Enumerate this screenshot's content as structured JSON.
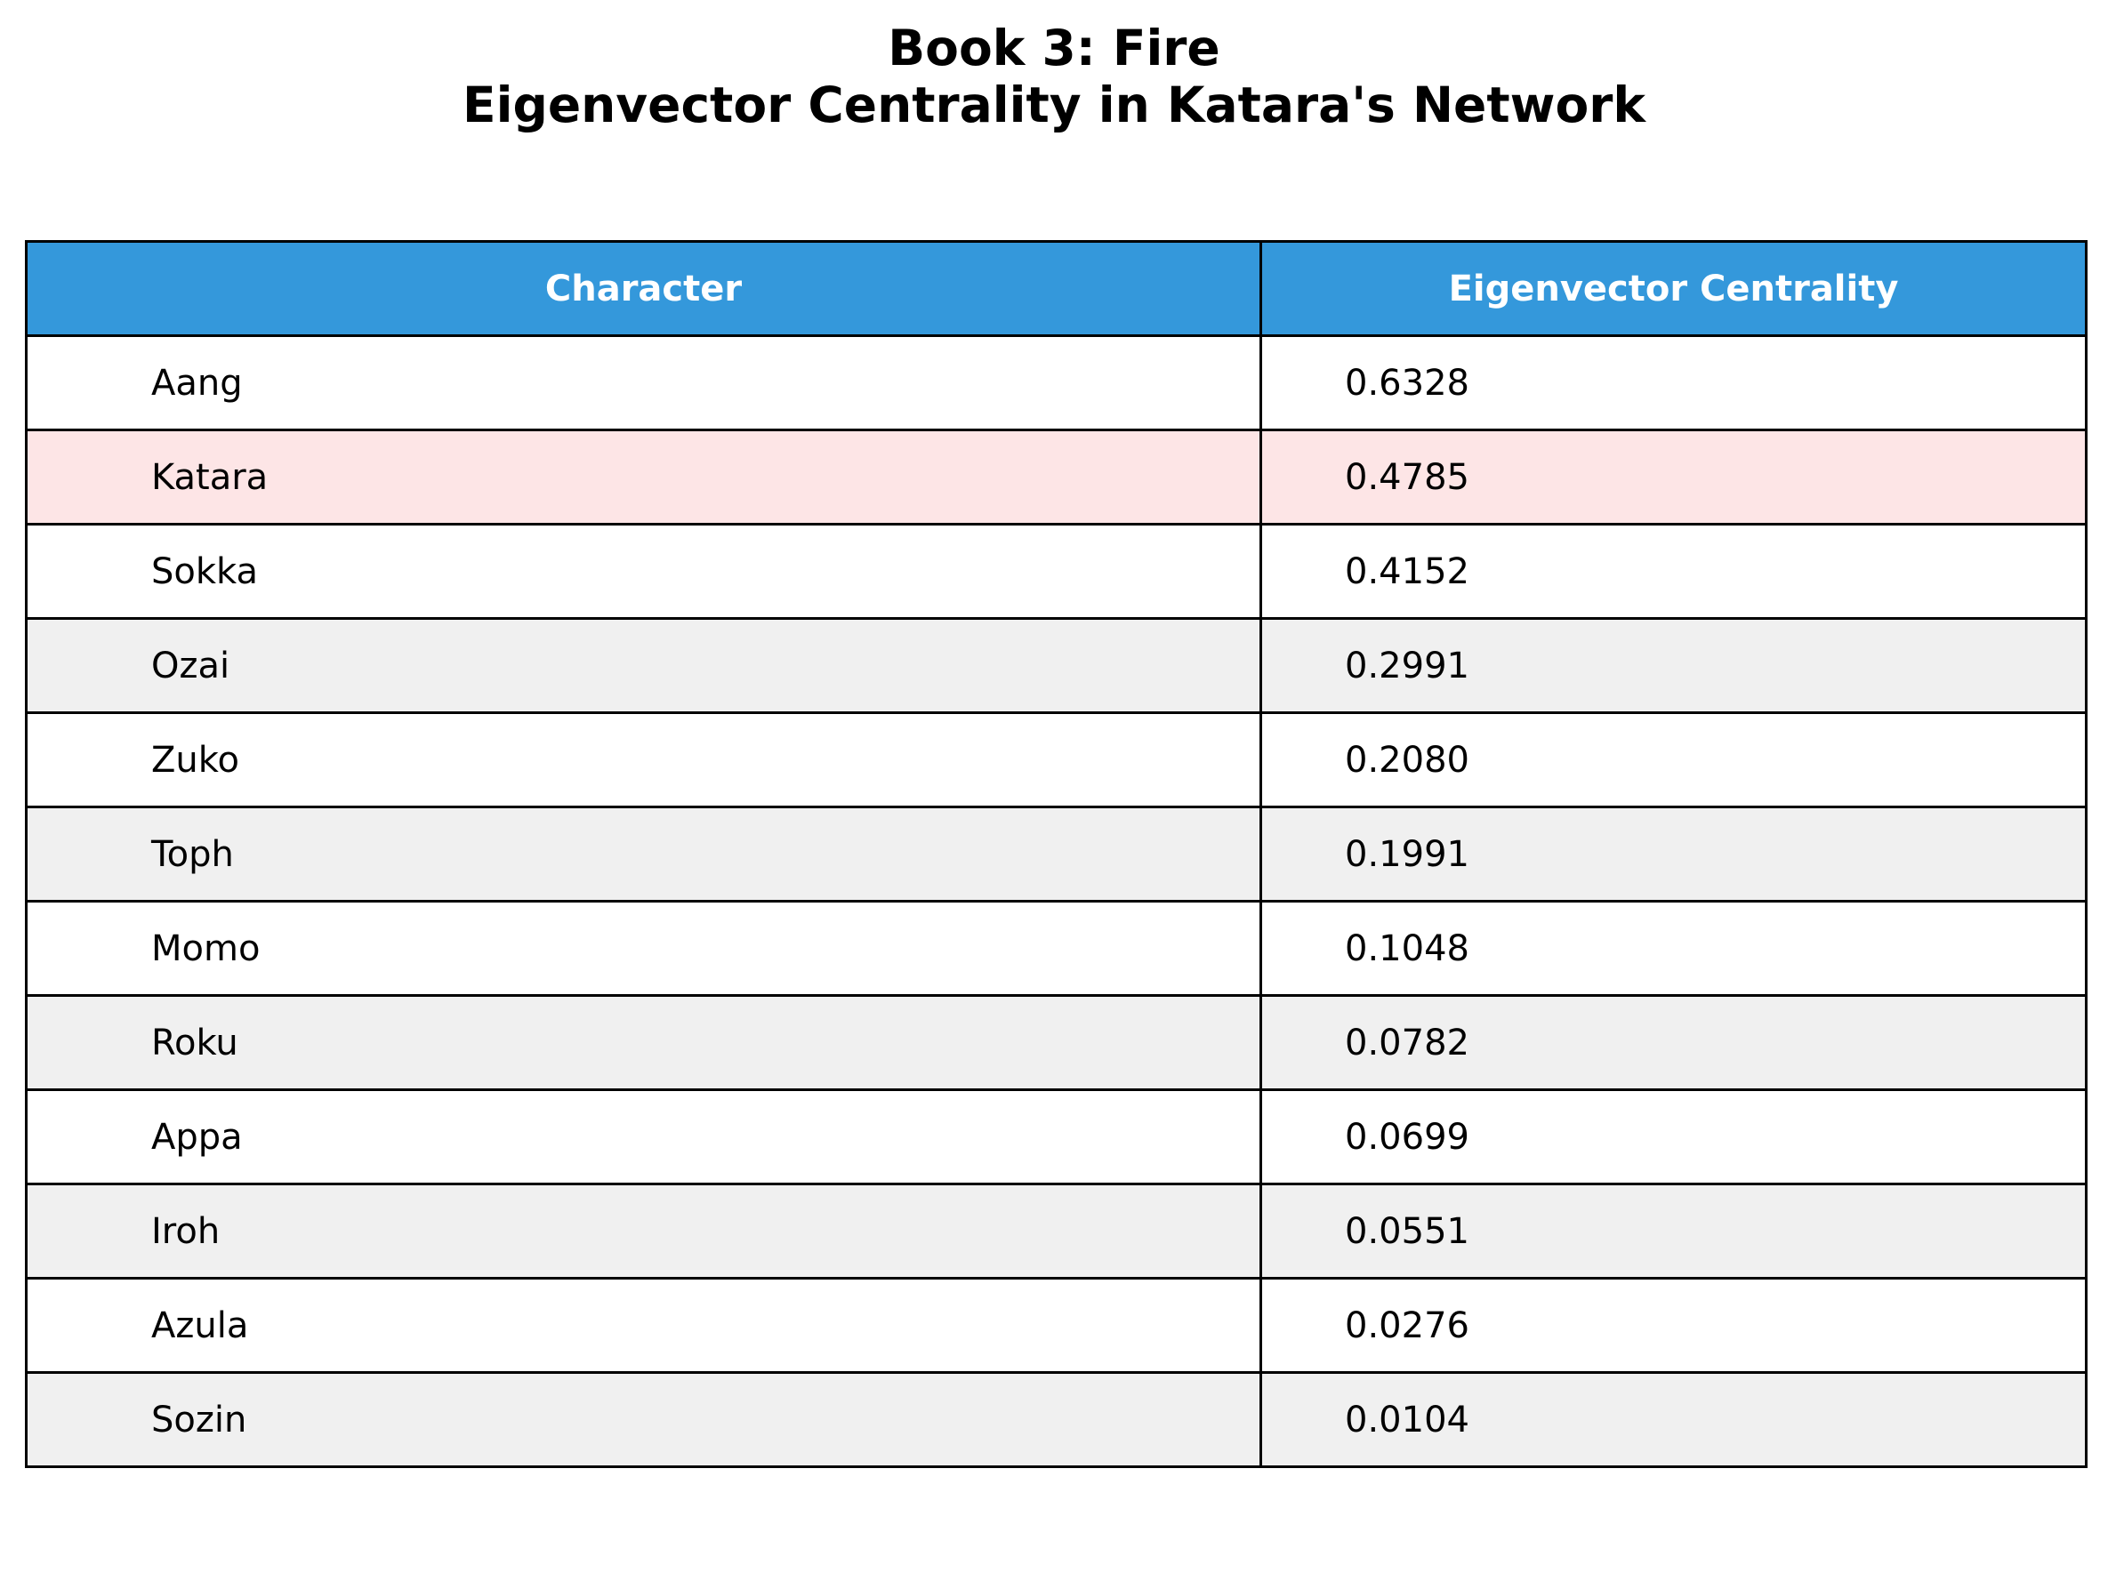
{
  "chart_data": {
    "type": "table",
    "title_lines": [
      "Book 3: Fire",
      "Eigenvector Centrality in Katara's Network"
    ],
    "columns": [
      "Character",
      "Eigenvector Centrality"
    ],
    "rows": [
      {
        "character": "Aang",
        "value": "0.6328"
      },
      {
        "character": "Katara",
        "value": "0.4785"
      },
      {
        "character": "Sokka",
        "value": "0.4152"
      },
      {
        "character": "Ozai",
        "value": "0.2991"
      },
      {
        "character": "Zuko",
        "value": "0.2080"
      },
      {
        "character": "Toph",
        "value": "0.1991"
      },
      {
        "character": "Momo",
        "value": "0.1048"
      },
      {
        "character": "Roku",
        "value": "0.0782"
      },
      {
        "character": "Appa",
        "value": "0.0699"
      },
      {
        "character": "Iroh",
        "value": "0.0551"
      },
      {
        "character": "Azula",
        "value": "0.0276"
      },
      {
        "character": "Sozin",
        "value": "0.0104"
      }
    ],
    "highlighted_character": "Katara",
    "colors": {
      "header_background": "#3498db",
      "header_text": "#ffffff",
      "row_even": "#ffffff",
      "row_odd": "#f0f0f0",
      "highlight_row": "#fde5e6",
      "border": "#000000"
    }
  }
}
